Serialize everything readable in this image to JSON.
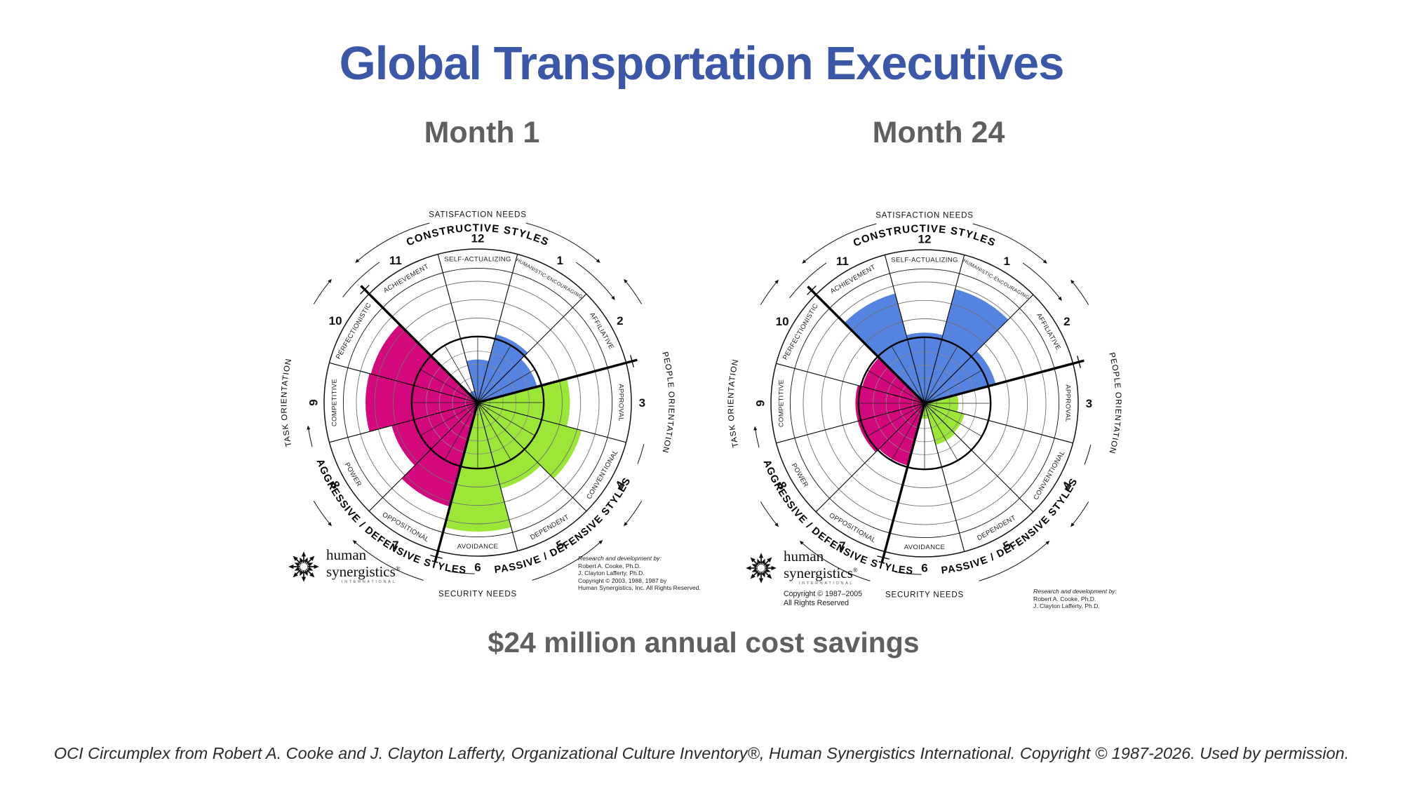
{
  "slide": {
    "title": "Global Transportation Executives",
    "savings_caption": "$24 million annual cost savings",
    "footer": "OCI Circumplex from Robert A. Cooke and J. Clayton Lafferty, Organizational Culture Inventory®, Human Synergistics International. Copyright © 1987-2026. Used by permission."
  },
  "colors": {
    "title_blue": "#3b58a8",
    "heading_gray": "#5f5f5f",
    "constructive_blue": "#5584e0",
    "passive_green": "#9be637",
    "aggressive_magenta": "#d3087d",
    "line_black": "#111111"
  },
  "circumplex_template": {
    "clock_numbers": [
      "12",
      "1",
      "2",
      "3",
      "4",
      "5",
      "6",
      "7",
      "8",
      "9",
      "10",
      "11"
    ],
    "arc_labels": {
      "top": "SATISFACTION NEEDS",
      "bottom": "SECURITY NEEDS",
      "left": "TASK ORIENTATION",
      "right": "PEOPLE ORIENTATION",
      "constructive": "CONSTRUCTIVE STYLES",
      "passive": "PASSIVE / DEFENSIVE STYLES",
      "aggressive": "AGGRESSIVE / DEFENSIVE STYLES"
    },
    "logo": {
      "word1": "human",
      "word2": "synergistics",
      "reg": "®",
      "subtitle": "INTERNATIONAL"
    }
  },
  "chart_data": [
    {
      "type": "polar",
      "title": "Month 1",
      "note": "OCI circumplex; extent = wedge radius as fraction of outer circle radius",
      "styles": [
        {
          "hour": 12,
          "name": "SELF-ACTUALIZING",
          "cluster": "constructive",
          "extent": 0.28
        },
        {
          "hour": 1,
          "name": "HUMANISTIC-ENCOURAGING",
          "cluster": "constructive",
          "extent": 0.46
        },
        {
          "hour": 2,
          "name": "AFFILIATIVE",
          "cluster": "constructive",
          "extent": 0.4
        },
        {
          "hour": 3,
          "name": "APPROVAL",
          "cluster": "passive",
          "extent": 0.6
        },
        {
          "hour": 4,
          "name": "CONVENTIONAL",
          "cluster": "passive",
          "extent": 0.7
        },
        {
          "hour": 5,
          "name": "DEPENDENT",
          "cluster": "passive",
          "extent": 0.58
        },
        {
          "hour": 6,
          "name": "AVOIDANCE",
          "cluster": "passive",
          "extent": 0.84
        },
        {
          "hour": 7,
          "name": "OPPOSITIONAL",
          "cluster": "aggressive",
          "extent": 0.7
        },
        {
          "hour": 8,
          "name": "POWER",
          "cluster": "aggressive",
          "extent": 0.58
        },
        {
          "hour": 9,
          "name": "COMPETITIVE",
          "cluster": "aggressive",
          "extent": 0.73
        },
        {
          "hour": 10,
          "name": "PERFECTIONISTIC",
          "cluster": "aggressive",
          "extent": 0.72
        },
        {
          "hour": 11,
          "name": "ACHIEVEMENT",
          "cluster": "constructive",
          "extent": 0.08
        }
      ],
      "research_lines": [
        "Research and development by:",
        "Robert A. Cooke, Ph.D.",
        "J. Clayton Lafferty, Ph.D.",
        "Copyright © 2003, 1988, 1987 by",
        "Human Synergistics, Inc. All Rights Reserved."
      ],
      "logo_copyright": []
    },
    {
      "type": "polar",
      "title": "Month 24",
      "note": "OCI circumplex; extent = wedge radius as fraction of outer circle radius",
      "styles": [
        {
          "hour": 12,
          "name": "SELF-ACTUALIZING",
          "cluster": "constructive",
          "extent": 0.46
        },
        {
          "hour": 1,
          "name": "HUMANISTIC-ENCOURAGING",
          "cluster": "constructive",
          "extent": 0.77
        },
        {
          "hour": 2,
          "name": "AFFILIATIVE",
          "cluster": "constructive",
          "extent": 0.48
        },
        {
          "hour": 3,
          "name": "APPROVAL",
          "cluster": "passive",
          "extent": 0.22
        },
        {
          "hour": 4,
          "name": "CONVENTIONAL",
          "cluster": "passive",
          "extent": 0.27
        },
        {
          "hour": 5,
          "name": "DEPENDENT",
          "cluster": "passive",
          "extent": 0.28
        },
        {
          "hour": 6,
          "name": "AVOIDANCE",
          "cluster": "passive",
          "extent": 0.1
        },
        {
          "hour": 7,
          "name": "OPPOSITIONAL",
          "cluster": "aggressive",
          "extent": 0.42
        },
        {
          "hour": 8,
          "name": "POWER",
          "cluster": "aggressive",
          "extent": 0.45
        },
        {
          "hour": 9,
          "name": "COMPETITIVE",
          "cluster": "aggressive",
          "extent": 0.45
        },
        {
          "hour": 10,
          "name": "PERFECTIONISTIC",
          "cluster": "aggressive",
          "extent": 0.42
        },
        {
          "hour": 11,
          "name": "ACHIEVEMENT",
          "cluster": "constructive",
          "extent": 0.74
        }
      ],
      "research_lines": [
        "Research and development by:",
        "Robert A. Cooke, Ph.D.",
        "J. Clayton Lafferty, Ph.D."
      ],
      "logo_copyright": [
        "Copyright © 1987–2005",
        "All Rights Reserved"
      ]
    }
  ]
}
